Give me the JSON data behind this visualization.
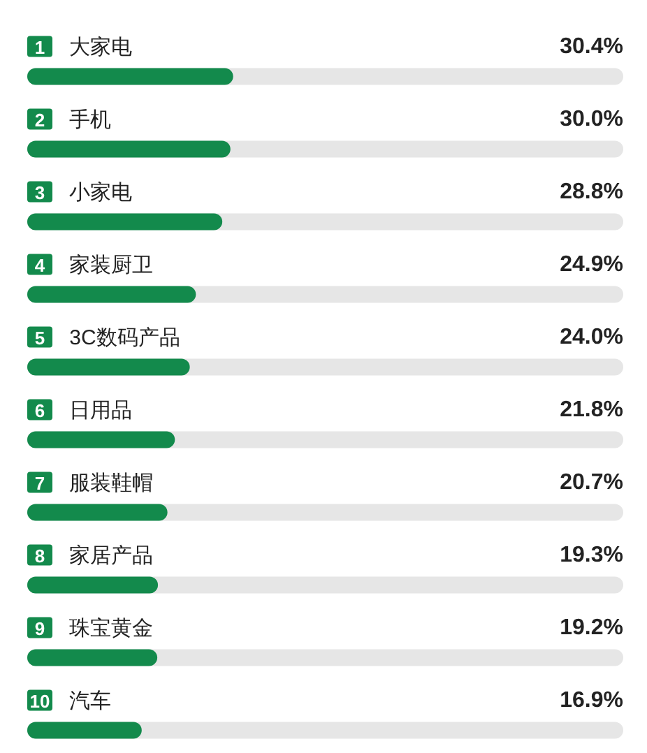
{
  "chart_data": {
    "type": "bar",
    "orientation": "horizontal",
    "categories": [
      "1 大家电",
      "2 手机",
      "3 小家电",
      "4 家装厨卫",
      "5 3C数码产品",
      "6 日用品",
      "7 服装鞋帽",
      "8 家居产品",
      "9 珠宝黄金",
      "10 汽车"
    ],
    "values": [
      30.4,
      30.0,
      28.8,
      24.9,
      24.0,
      21.8,
      20.7,
      19.3,
      19.2,
      16.9
    ],
    "value_labels": [
      "30.4%",
      "30.0%",
      "28.8%",
      "24.9%",
      "24.0%",
      "21.8%",
      "20.7%",
      "19.3%",
      "19.2%",
      "16.9%"
    ],
    "color": "#138a4c",
    "xlim": [
      0,
      88
    ],
    "tick_labels": "y"
  }
}
